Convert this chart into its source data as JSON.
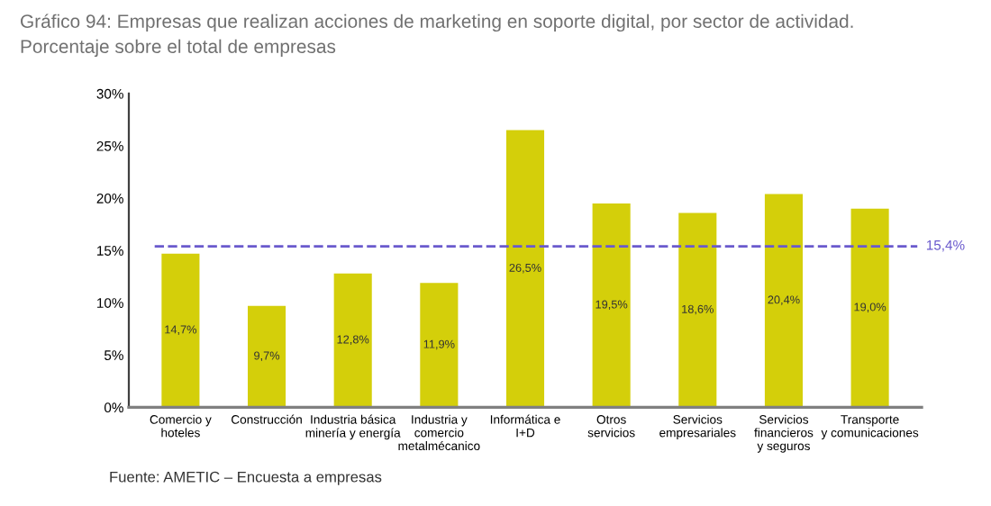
{
  "chart_data": {
    "type": "bar",
    "title": "Gráfico 94: Empresas que realizan acciones de marketing en soporte digital, por sector de actividad.",
    "subtitle": "Porcentaje sobre el total de empresas",
    "categories": [
      "Comercio y\nhoteles",
      "Construcción",
      "Industria básica\nminería y energía",
      "Industria y\ncomercio\nmetalmécanico",
      "Informática e\nI+D",
      "Otros\nservicios",
      "Servicios\nempresariales",
      "Servicios\nfinancieros\ny seguros",
      "Transporte\ny comunicaciones"
    ],
    "values": [
      14.7,
      9.7,
      12.8,
      11.9,
      26.5,
      19.5,
      18.6,
      20.4,
      19.0
    ],
    "value_labels": [
      "14,7%",
      "9,7%",
      "12,8%",
      "11,9%",
      "26,5%",
      "19,5%",
      "18,6%",
      "20,4%",
      "19,0%"
    ],
    "color": "#d4cf0a",
    "ylim": [
      0,
      30
    ],
    "yticks": [
      {
        "value": 0,
        "label": "0%"
      },
      {
        "value": 5,
        "label": "5%"
      },
      {
        "value": 10,
        "label": "10%"
      },
      {
        "value": 15,
        "label": "15%"
      },
      {
        "value": 20,
        "label": "20%"
      },
      {
        "value": 25,
        "label": "25%"
      },
      {
        "value": 30,
        "label": "30%"
      }
    ],
    "ref_lines": [
      {
        "axis": "y",
        "value": 15.4,
        "label": "15,4%",
        "color": "#6a5acd",
        "line_style": "dashed"
      }
    ],
    "annotations": [
      "Fuente: AMETIC – Encuesta a empresas"
    ],
    "grid": false
  }
}
